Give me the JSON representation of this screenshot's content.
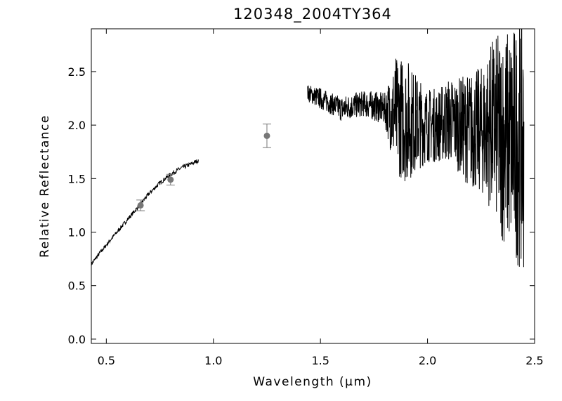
{
  "chart_data": {
    "type": "line",
    "title": "120348_2004TY364",
    "xlabel": "Wavelength (μm)",
    "ylabel": "Relative Reflectance",
    "xlim": [
      0.43,
      2.5
    ],
    "ylim": [
      -0.04,
      2.9
    ],
    "grid": false,
    "legend": "none",
    "x_ticks": [
      {
        "value": 0.5,
        "label": "0.5"
      },
      {
        "value": 1.0,
        "label": "1.0"
      },
      {
        "value": 1.5,
        "label": "1.5"
      },
      {
        "value": 2.0,
        "label": "2.0"
      },
      {
        "value": 2.5,
        "label": "2.5"
      }
    ],
    "y_ticks": [
      {
        "value": 0.0,
        "label": "0.0"
      },
      {
        "value": 0.5,
        "label": "0.5"
      },
      {
        "value": 1.0,
        "label": "1.0"
      },
      {
        "value": 1.5,
        "label": "1.5"
      },
      {
        "value": 2.0,
        "label": "2.0"
      },
      {
        "value": 2.5,
        "label": "2.5"
      }
    ],
    "series": [
      {
        "role": "visible-spectrum",
        "style": "line",
        "color": "#000000",
        "x": [
          0.43,
          0.46,
          0.5,
          0.55,
          0.6,
          0.65,
          0.7,
          0.75,
          0.8,
          0.85,
          0.9,
          0.93
        ],
        "y": [
          0.7,
          0.78,
          0.88,
          1.0,
          1.12,
          1.24,
          1.36,
          1.46,
          1.54,
          1.6,
          1.64,
          1.67
        ]
      },
      {
        "role": "near-infrared-spectrum",
        "style": "line",
        "color": "#000000",
        "x": [
          1.44,
          1.5,
          1.55,
          1.6,
          1.65,
          1.7,
          1.75,
          1.8,
          1.85,
          1.9,
          1.95,
          2.0,
          2.05,
          2.1,
          2.15,
          2.2,
          2.25,
          2.3,
          2.35,
          2.4,
          2.45
        ],
        "y": [
          2.3,
          2.25,
          2.2,
          2.15,
          2.18,
          2.2,
          2.18,
          2.15,
          2.1,
          2.05,
          2.02,
          2.0,
          2.0,
          2.05,
          2.0,
          1.95,
          1.95,
          2.0,
          1.9,
          1.85,
          1.8
        ],
        "noise": [
          0.08,
          0.1,
          0.1,
          0.12,
          0.12,
          0.12,
          0.14,
          0.15,
          0.55,
          0.6,
          0.45,
          0.35,
          0.35,
          0.4,
          0.45,
          0.55,
          0.6,
          0.8,
          1.0,
          1.1,
          1.2
        ]
      },
      {
        "role": "photometry",
        "style": "points",
        "color": "#777777",
        "x": [
          0.66,
          0.8,
          1.25
        ],
        "y": [
          1.25,
          1.49,
          1.9
        ],
        "yerr": [
          0.05,
          0.05,
          0.11
        ]
      }
    ]
  }
}
